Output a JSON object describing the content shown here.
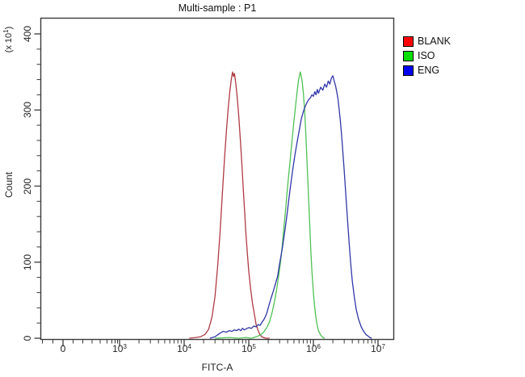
{
  "chart": {
    "title": "Multi-sample : P1",
    "xlabel": "FITC-A",
    "ylabel": "Count",
    "y_multiplier": "(x 10^1)"
  },
  "legend": {
    "items": [
      {
        "label": "BLANK",
        "color": "#ff0000"
      },
      {
        "label": "ISO",
        "color": "#00dd00"
      },
      {
        "label": "ENG",
        "color": "#0000f0"
      }
    ]
  },
  "chart_data": {
    "type": "line",
    "subtype": "flow-cytometry-histogram-overlay",
    "title": "Multi-sample : P1",
    "xlabel": "FITC-A",
    "ylabel": "Count",
    "y_unit_multiplier": "x 10^1",
    "x_scale": "biexponential-log",
    "ylim": [
      0,
      420
    ],
    "grid": false,
    "legend_position": "right-outside",
    "x_ticks": [
      {
        "value": 0,
        "label": "0"
      },
      {
        "value": 1000,
        "label": "10^3"
      },
      {
        "value": 10000,
        "label": "10^4"
      },
      {
        "value": 100000,
        "label": "10^5"
      },
      {
        "value": 1000000,
        "label": "10^6"
      },
      {
        "value": 10000000,
        "label": "10^7"
      }
    ],
    "y_ticks": [
      0,
      100,
      200,
      300,
      400
    ],
    "series": [
      {
        "name": "BLANK",
        "color": "#b03a44",
        "peak_x": 56000,
        "peak_count": 350,
        "points": [
          [
            12000,
            0
          ],
          [
            15000,
            1
          ],
          [
            18000,
            2
          ],
          [
            21000,
            5
          ],
          [
            24000,
            12
          ],
          [
            27000,
            28
          ],
          [
            30000,
            55
          ],
          [
            33000,
            95
          ],
          [
            36000,
            140
          ],
          [
            39000,
            190
          ],
          [
            42000,
            235
          ],
          [
            45000,
            272
          ],
          [
            48000,
            302
          ],
          [
            51000,
            325
          ],
          [
            54000,
            342
          ],
          [
            56000,
            350
          ],
          [
            58000,
            344
          ],
          [
            60000,
            348
          ],
          [
            63000,
            335
          ],
          [
            66000,
            318
          ],
          [
            70000,
            292
          ],
          [
            74000,
            262
          ],
          [
            78000,
            230
          ],
          [
            82000,
            198
          ],
          [
            86000,
            168
          ],
          [
            90000,
            140
          ],
          [
            95000,
            112
          ],
          [
            100000,
            88
          ],
          [
            107000,
            64
          ],
          [
            114000,
            46
          ],
          [
            122000,
            32
          ],
          [
            130000,
            18
          ],
          [
            140000,
            10
          ],
          [
            148000,
            5
          ],
          [
            158000,
            2
          ],
          [
            170000,
            1
          ],
          [
            185000,
            0
          ],
          [
            210000,
            0
          ]
        ]
      },
      {
        "name": "ISO",
        "color": "#4ec155",
        "peak_x": 630000,
        "peak_count": 350,
        "points": [
          [
            30000,
            0
          ],
          [
            50000,
            1
          ],
          [
            70000,
            0
          ],
          [
            90000,
            1
          ],
          [
            110000,
            0
          ],
          [
            130000,
            2
          ],
          [
            150000,
            4
          ],
          [
            170000,
            8
          ],
          [
            190000,
            14
          ],
          [
            210000,
            22
          ],
          [
            230000,
            34
          ],
          [
            250000,
            48
          ],
          [
            270000,
            64
          ],
          [
            290000,
            82
          ],
          [
            310000,
            100
          ],
          [
            330000,
            122
          ],
          [
            350000,
            146
          ],
          [
            370000,
            168
          ],
          [
            390000,
            190
          ],
          [
            410000,
            210
          ],
          [
            430000,
            228
          ],
          [
            450000,
            246
          ],
          [
            470000,
            262
          ],
          [
            490000,
            278
          ],
          [
            510000,
            292
          ],
          [
            530000,
            305
          ],
          [
            550000,
            318
          ],
          [
            570000,
            330
          ],
          [
            590000,
            340
          ],
          [
            610000,
            345
          ],
          [
            630000,
            350
          ],
          [
            650000,
            344
          ],
          [
            670000,
            338
          ],
          [
            700000,
            322
          ],
          [
            730000,
            300
          ],
          [
            760000,
            272
          ],
          [
            790000,
            240
          ],
          [
            820000,
            208
          ],
          [
            850000,
            176
          ],
          [
            880000,
            146
          ],
          [
            910000,
            118
          ],
          [
            950000,
            88
          ],
          [
            1000000,
            60
          ],
          [
            1050000,
            40
          ],
          [
            1100000,
            26
          ],
          [
            1150000,
            16
          ],
          [
            1200000,
            10
          ],
          [
            1300000,
            4
          ],
          [
            1400000,
            1
          ],
          [
            1500000,
            0
          ]
        ]
      },
      {
        "name": "ENG",
        "color": "#3137a8",
        "peak_x": 2000000,
        "peak_count": 345,
        "points": [
          [
            25000,
            0
          ],
          [
            30000,
            2
          ],
          [
            35000,
            6
          ],
          [
            40000,
            9
          ],
          [
            45000,
            8
          ],
          [
            50000,
            10
          ],
          [
            55000,
            9
          ],
          [
            60000,
            11
          ],
          [
            65000,
            10
          ],
          [
            70000,
            12
          ],
          [
            75000,
            10
          ],
          [
            80000,
            13
          ],
          [
            85000,
            11
          ],
          [
            90000,
            12
          ],
          [
            95000,
            13
          ],
          [
            100000,
            14
          ],
          [
            110000,
            13
          ],
          [
            120000,
            16
          ],
          [
            130000,
            15
          ],
          [
            140000,
            18
          ],
          [
            150000,
            17
          ],
          [
            160000,
            21
          ],
          [
            170000,
            24
          ],
          [
            180000,
            28
          ],
          [
            190000,
            33
          ],
          [
            200000,
            40
          ],
          [
            220000,
            52
          ],
          [
            240000,
            62
          ],
          [
            260000,
            72
          ],
          [
            280000,
            82
          ],
          [
            300000,
            98
          ],
          [
            330000,
            118
          ],
          [
            360000,
            140
          ],
          [
            390000,
            162
          ],
          [
            420000,
            185
          ],
          [
            450000,
            205
          ],
          [
            480000,
            222
          ],
          [
            520000,
            242
          ],
          [
            560000,
            258
          ],
          [
            600000,
            272
          ],
          [
            650000,
            288
          ],
          [
            700000,
            298
          ],
          [
            750000,
            305
          ],
          [
            800000,
            310
          ],
          [
            850000,
            314
          ],
          [
            900000,
            316
          ],
          [
            950000,
            320
          ],
          [
            1000000,
            318
          ],
          [
            1050000,
            324
          ],
          [
            1100000,
            320
          ],
          [
            1150000,
            327
          ],
          [
            1200000,
            322
          ],
          [
            1300000,
            330
          ],
          [
            1400000,
            326
          ],
          [
            1500000,
            334
          ],
          [
            1600000,
            330
          ],
          [
            1700000,
            338
          ],
          [
            1800000,
            334
          ],
          [
            1900000,
            342
          ],
          [
            2000000,
            345
          ],
          [
            2100000,
            338
          ],
          [
            2200000,
            332
          ],
          [
            2300000,
            324
          ],
          [
            2400000,
            315
          ],
          [
            2500000,
            302
          ],
          [
            2600000,
            288
          ],
          [
            2700000,
            272
          ],
          [
            2800000,
            255
          ],
          [
            3000000,
            220
          ],
          [
            3200000,
            185
          ],
          [
            3400000,
            152
          ],
          [
            3600000,
            122
          ],
          [
            3800000,
            96
          ],
          [
            4000000,
            75
          ],
          [
            4300000,
            54
          ],
          [
            4600000,
            38
          ],
          [
            5000000,
            25
          ],
          [
            5500000,
            15
          ],
          [
            6000000,
            9
          ],
          [
            6500000,
            5
          ],
          [
            7000000,
            3
          ],
          [
            7500000,
            1
          ],
          [
            8000000,
            0
          ]
        ]
      }
    ]
  }
}
